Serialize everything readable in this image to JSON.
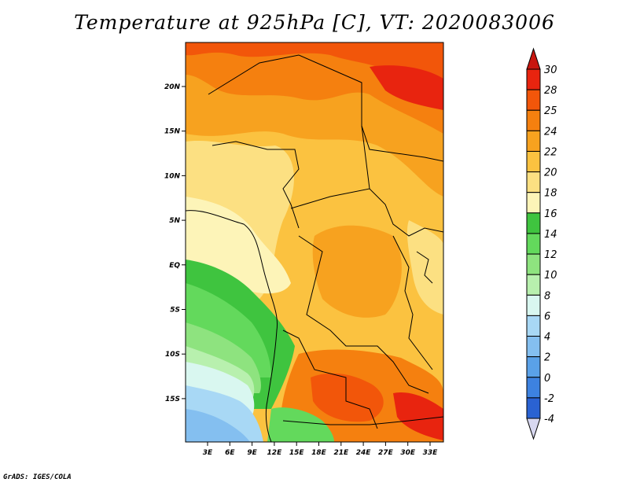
{
  "title": "Temperature at 925hPa [C], VT: 2020083006",
  "credit": "GrADS: IGES/COLA",
  "map": {
    "lat_ticks": [
      "20N",
      "15N",
      "10N",
      "5N",
      "EQ",
      "5S",
      "10S",
      "15S"
    ],
    "lon_ticks": [
      "3E",
      "6E",
      "9E",
      "12E",
      "15E",
      "18E",
      "21E",
      "24E",
      "27E",
      "30E",
      "33E"
    ]
  },
  "colorbar": {
    "unit": "C",
    "levels": [
      "30",
      "28",
      "25",
      "24",
      "22",
      "20",
      "18",
      "16",
      "14",
      "12",
      "10",
      "8",
      "6",
      "4",
      "2",
      "0",
      "-2",
      "-4"
    ],
    "colors": [
      "#e8240f",
      "#f2560a",
      "#f5800f",
      "#f7a21f",
      "#fbc240",
      "#fce082",
      "#fdf4b8",
      "#3fc43f",
      "#63d95c",
      "#8ee37f",
      "#b8f0ae",
      "#d9f7f0",
      "#a8d8f5",
      "#84bff0",
      "#5aa1e8",
      "#3d82e0",
      "#2a62d2",
      "#1a44b8",
      "#0c2a92",
      "#061a6e"
    ],
    "top_cap_color": "#c8160f",
    "bottom_cap_color": "#d8d8f0"
  }
}
